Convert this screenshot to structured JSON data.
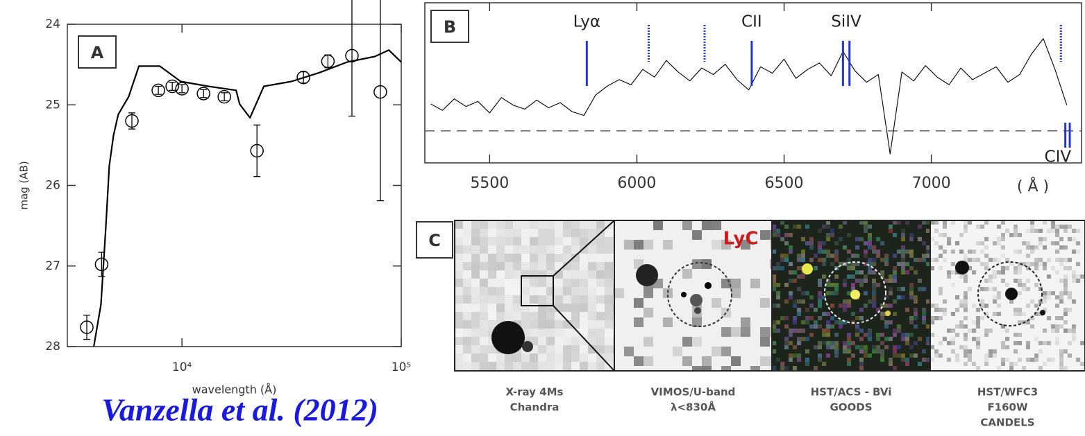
{
  "chart_data": [
    {
      "type": "line",
      "label": "A",
      "xlabel": "wavelength (Å)",
      "ylabel": "mag (AB)",
      "xlog": true,
      "xlim": [
        3000,
        100000
      ],
      "ylim": [
        28,
        24
      ],
      "xticks": [
        {
          "value": 10000,
          "label": "10⁴"
        },
        {
          "value": 100000,
          "label": "10⁵"
        }
      ],
      "yticks": [
        24,
        25,
        26,
        27,
        28
      ],
      "series": [
        {
          "color": "#000000",
          "x": [
            3960,
            4270,
            4490,
            4660,
            4870,
            5120,
            5710,
            6360,
            7920,
            9860,
            13190,
            17650,
            18320,
            20430,
            23620,
            31600,
            42350,
            56630,
            75850,
            87740,
            100000
          ],
          "values": [
            28.0,
            27.48,
            26.54,
            25.76,
            25.38,
            25.12,
            24.9,
            24.52,
            24.52,
            24.71,
            24.77,
            24.82,
            24.99,
            25.16,
            24.77,
            24.71,
            24.6,
            24.47,
            24.4,
            24.32,
            24.47
          ]
        },
        {
          "color": "#000000",
          "marker": "circle",
          "x": [
            3680,
            4300,
            5910,
            7800,
            9030,
            10000,
            12540,
            15600,
            21980,
            35800,
            46300,
            59600,
            80300
          ],
          "values": [
            27.76,
            26.98,
            25.2,
            24.82,
            24.77,
            24.8,
            24.86,
            24.9,
            25.57,
            24.66,
            24.46,
            24.39,
            24.84
          ],
          "errors": [
            0.15,
            0.15,
            0.1,
            0.05,
            0.05,
            0.05,
            0.05,
            0.05,
            0.32,
            0.07,
            0.08,
            0.75,
            1.35
          ]
        }
      ]
    },
    {
      "type": "line",
      "label": "B",
      "xlabel": "( Å )",
      "xlim": [
        5280,
        7510
      ],
      "ylim": [
        -2.5,
        10
      ],
      "xticks": [
        5500,
        6000,
        6500,
        7000
      ],
      "baseline": 0,
      "series": [
        {
          "color": "#111111",
          "x": [
            5300,
            5340,
            5380,
            5420,
            5460,
            5500,
            5540,
            5580,
            5620,
            5660,
            5700,
            5740,
            5780,
            5820,
            5860,
            5900,
            5940,
            5980,
            6020,
            6060,
            6100,
            6140,
            6180,
            6220,
            6260,
            6300,
            6340,
            6380,
            6420,
            6460,
            6500,
            6540,
            6580,
            6620,
            6660,
            6700,
            6740,
            6780,
            6820,
            6860,
            6900,
            6940,
            6980,
            7020,
            7060,
            7100,
            7140,
            7180,
            7220,
            7260,
            7300,
            7340,
            7380,
            7420,
            7460
          ],
          "values": [
            2.1,
            1.6,
            2.5,
            1.9,
            2.3,
            1.4,
            2.6,
            2.0,
            1.7,
            2.4,
            1.8,
            2.2,
            1.5,
            1.2,
            2.8,
            3.5,
            4.0,
            3.6,
            4.8,
            4.2,
            5.5,
            4.6,
            3.9,
            4.9,
            4.4,
            5.2,
            4.0,
            3.2,
            5.0,
            4.5,
            5.6,
            4.1,
            4.8,
            5.3,
            4.3,
            6.2,
            4.7,
            3.8,
            4.4,
            -1.8,
            4.6,
            3.9,
            5.1,
            4.2,
            3.6,
            4.9,
            4.0,
            4.5,
            5.0,
            3.8,
            4.4,
            6.0,
            7.2,
            4.8,
            2.0
          ]
        }
      ],
      "line_color": "#2233dd",
      "lines": [
        {
          "label": "Lyα",
          "x": [
            5830
          ],
          "side": "top"
        },
        {
          "label": "CII",
          "x": [
            6390
          ],
          "side": "top"
        },
        {
          "label": "SiIV",
          "x": [
            6700,
            6722
          ],
          "side": "top"
        },
        {
          "label": "CIV",
          "x": [
            7455,
            7470
          ],
          "side": "bottom"
        }
      ],
      "dotted": [
        6040,
        6230,
        7440
      ]
    }
  ],
  "panel_c": {
    "label": "C",
    "tag": "LyC",
    "captions": [
      [
        "X-ray 4Ms",
        "Chandra"
      ],
      [
        "VIMOS/U-band",
        "λ<830Å"
      ],
      [
        "HST/ACS - BVi",
        "GOODS"
      ],
      [
        "HST/WFC3",
        "F160W",
        "CANDELS"
      ]
    ]
  },
  "citation": "Vanzella et al. (2012)"
}
